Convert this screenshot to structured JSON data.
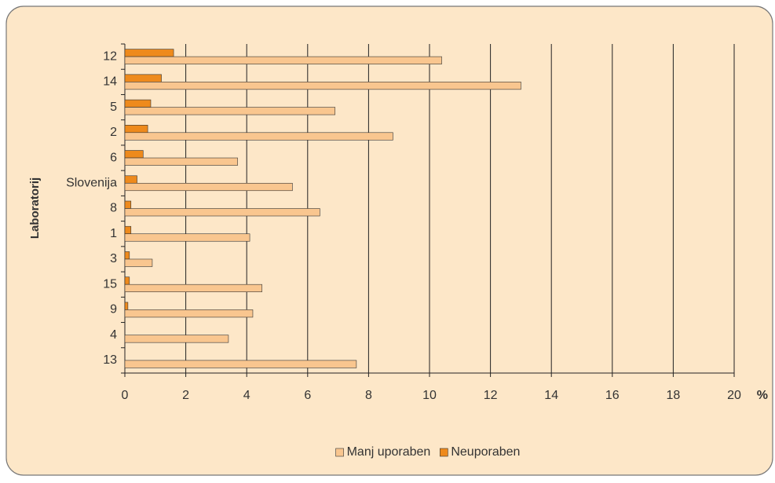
{
  "chart_data": {
    "type": "hbar",
    "y_label": "Laboratorij",
    "x_label": "%",
    "categories": [
      "12",
      "14",
      "5",
      "2",
      "6",
      "Slovenija",
      "8",
      "1",
      "3",
      "15",
      "9",
      "4",
      "13"
    ],
    "series": [
      {
        "name": "Manj uporaben",
        "color": "#f9c68f",
        "values": [
          10.4,
          13.0,
          6.9,
          8.8,
          3.7,
          5.5,
          6.4,
          4.1,
          0.9,
          4.5,
          4.2,
          3.4,
          7.6
        ]
      },
      {
        "name": "Neuporaben",
        "color": "#ee8a1c",
        "values": [
          1.6,
          1.2,
          0.85,
          0.75,
          0.6,
          0.4,
          0.2,
          0.2,
          0.15,
          0.15,
          0.1,
          0,
          0
        ]
      }
    ],
    "xlim": [
      0,
      20
    ],
    "xticks": [
      0,
      2,
      4,
      6,
      8,
      10,
      12,
      14,
      16,
      18,
      20
    ],
    "grid": true,
    "legend": "bottom"
  }
}
